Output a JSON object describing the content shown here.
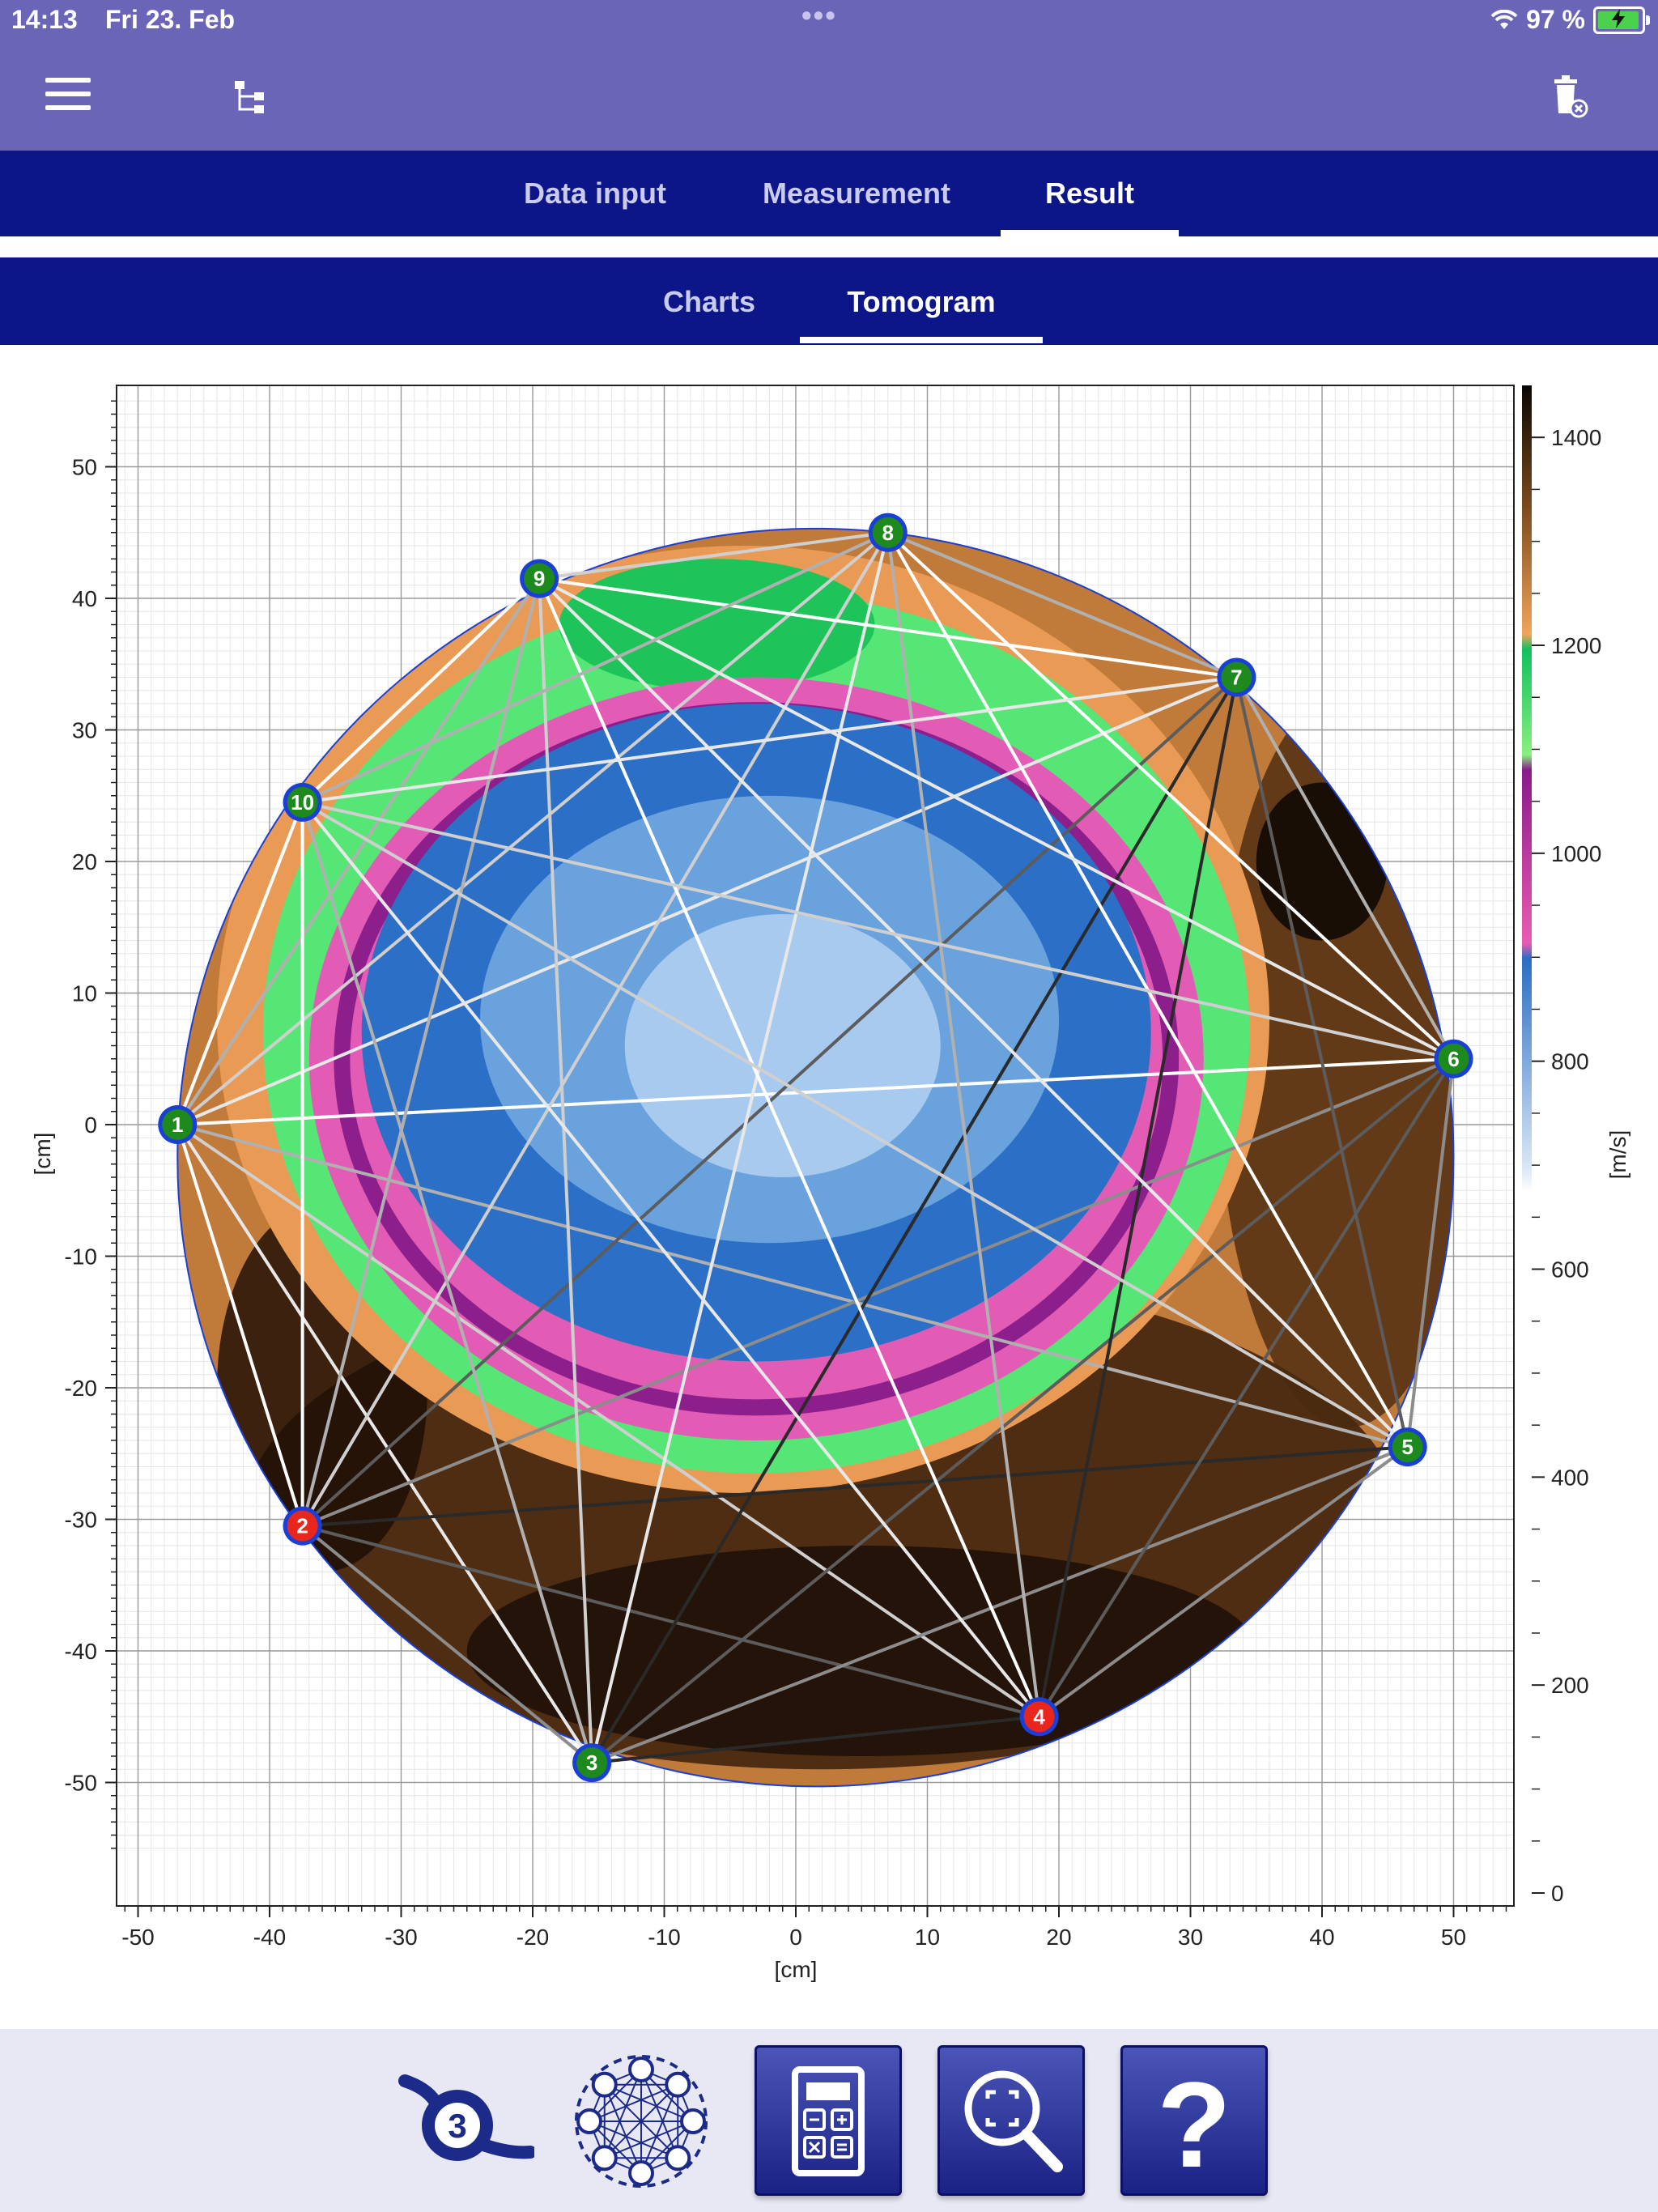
{
  "status_bar": {
    "time": "14:13",
    "date": "Fri 23. Feb",
    "battery": "97 %",
    "battery_level": 0.97
  },
  "toolbar": {
    "menu_icon": "hamburger-menu-icon",
    "tree_icon": "tree-structure-icon",
    "delete_icon": "trash-delete-icon"
  },
  "tabs": [
    {
      "label": "Data input",
      "active": false
    },
    {
      "label": "Measurement",
      "active": false
    },
    {
      "label": "Result",
      "active": true
    }
  ],
  "subtabs": [
    {
      "label": "Charts",
      "active": false
    },
    {
      "label": "Tomogram",
      "active": true
    }
  ],
  "tomogram": {
    "x_ticks": [
      "-50",
      "-40",
      "-30",
      "-20",
      "-10",
      "0",
      "10",
      "20",
      "30",
      "40",
      "50"
    ],
    "y_ticks": [
      "50",
      "40",
      "30",
      "20",
      "10",
      "0",
      "-10",
      "-20",
      "-30",
      "-40",
      "-50"
    ],
    "xlabel": "[cm]",
    "ylabel": "[cm]",
    "colorbar_ticks": [
      "1400",
      "1200",
      "1000",
      "800",
      "600",
      "400",
      "200",
      "0"
    ],
    "colorbar_label": "[m/s]",
    "sensors": [
      {
        "label": "1",
        "x": -47,
        "y": 0,
        "status": "ok"
      },
      {
        "label": "2",
        "x": -37.5,
        "y": -30.5,
        "status": "error"
      },
      {
        "label": "3",
        "x": -15.5,
        "y": -48.5,
        "status": "ok"
      },
      {
        "label": "4",
        "x": 18.5,
        "y": -45,
        "status": "error"
      },
      {
        "label": "5",
        "x": 46.5,
        "y": -24.5,
        "status": "ok"
      },
      {
        "label": "6",
        "x": 50,
        "y": 5,
        "status": "ok"
      },
      {
        "label": "7",
        "x": 33.5,
        "y": 34,
        "status": "ok"
      },
      {
        "label": "8",
        "x": 7,
        "y": 45,
        "status": "ok"
      },
      {
        "label": "9",
        "x": -19.5,
        "y": 41.5,
        "status": "ok"
      },
      {
        "label": "10",
        "x": -37.5,
        "y": 24.5,
        "status": "ok"
      }
    ],
    "colors": {
      "ok": "#1e8a1e",
      "error": "#e8261c",
      "outline": "#1a3fd6"
    }
  },
  "bottom_bar": {
    "buttons": [
      "sensor-number-icon",
      "sensor-network-icon",
      "calculator-icon",
      "zoom-fit-icon",
      "help-icon"
    ],
    "sensor_number": "3",
    "help_symbol": "?"
  }
}
